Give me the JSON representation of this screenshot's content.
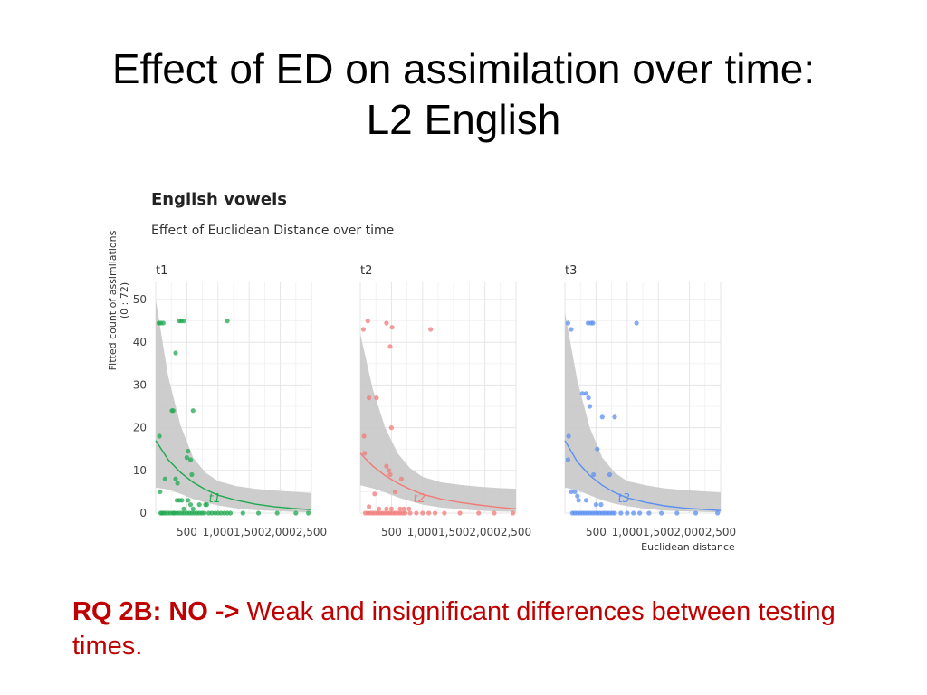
{
  "slide": {
    "title_line1": "Effect of ED on assimilation over time:",
    "title_line2": "L2 English"
  },
  "footer": {
    "prefix": "RQ 2B: NO ->",
    "text": " Weak and insignificant differences between testing times."
  },
  "colors": {
    "t1": "#1fa84f",
    "t2": "#f07b78",
    "t3": "#5b8ff0",
    "ribbon": "#c8c8c8",
    "grid": "#e6e6e6"
  },
  "chart_data": {
    "type": "scatter",
    "title": "English vowels",
    "subtitle": "Effect of Euclidean Distance over time",
    "ylabel": "Fitted count of assimilations",
    "ylabel_sub": "(0 : 72)",
    "xlabel": "Euclidean distance",
    "xlim": [
      0,
      2500
    ],
    "ylim": [
      0,
      50
    ],
    "x_ticks": [
      500,
      1000,
      1500,
      2000,
      2500
    ],
    "x_tick_labels": [
      "500",
      "1,000",
      "1,500",
      "2,000",
      "2,500"
    ],
    "y_ticks": [
      0,
      10,
      20,
      30,
      40,
      50
    ],
    "y_tick_labels": [
      "0",
      "10",
      "20",
      "30",
      "40",
      "50"
    ],
    "panels": [
      {
        "label": "t1",
        "curve_label": "t1",
        "curve": {
          "x": [
            0,
            200,
            400,
            600,
            800,
            1000,
            1300,
            1600,
            1900,
            2200,
            2500
          ],
          "y": [
            17,
            12.5,
            9.5,
            7.2,
            5.5,
            4.2,
            3,
            2.1,
            1.5,
            1.1,
            0.8
          ]
        },
        "ribbon_upper": [
          50,
          32,
          20.5,
          13,
          9.5,
          7.5,
          6.3,
          5.7,
          5.3,
          5,
          4.7
        ],
        "ribbon_lower": [
          6,
          5.5,
          4.5,
          3.3,
          2.5,
          1.8,
          1.1,
          0.7,
          0.5,
          0.3,
          0.2
        ],
        "points": {
          "x": [
            50,
            80,
            120,
            380,
            410,
            450,
            1150,
            320,
            260,
            280,
            600,
            520,
            500,
            560,
            580,
            60,
            70,
            150,
            320,
            350,
            340,
            380,
            420,
            520,
            560,
            700,
            800,
            820,
            450,
            600,
            80,
            100,
            130,
            160,
            200,
            240,
            280,
            300,
            340,
            380,
            420,
            460,
            500,
            540,
            580,
            620,
            660,
            700,
            740,
            780,
            850,
            900,
            950,
            1000,
            1050,
            1100,
            1150,
            1200,
            1400,
            1650,
            1950,
            2250,
            2450
          ],
          "y": [
            44.5,
            44.5,
            44.5,
            45,
            45,
            45,
            45,
            37.5,
            24,
            24,
            24,
            14.5,
            13,
            12.5,
            9,
            18,
            5,
            8,
            8,
            7,
            3,
            3,
            3,
            3,
            2,
            2,
            2,
            2,
            1,
            1,
            0,
            0,
            0,
            0,
            0,
            0,
            0,
            0,
            0,
            0,
            0,
            0,
            0,
            0,
            0,
            0,
            0,
            0,
            0,
            0,
            0,
            0,
            0,
            0,
            0,
            0,
            0,
            0,
            0,
            0,
            0,
            0,
            0
          ]
        }
      },
      {
        "label": "t2",
        "curve_label": "t2",
        "curve": {
          "x": [
            0,
            200,
            400,
            600,
            800,
            1000,
            1300,
            1600,
            1900,
            2200,
            2500
          ],
          "y": [
            14,
            11,
            8.8,
            7,
            5.6,
            4.4,
            3.3,
            2.5,
            1.9,
            1.4,
            1
          ]
        },
        "ribbon_upper": [
          42,
          29,
          20,
          14,
          10.5,
          8.5,
          7.2,
          6.6,
          6.2,
          5.9,
          5.7
        ],
        "ribbon_lower": [
          6.5,
          5.8,
          4.8,
          3.7,
          2.8,
          2,
          1.3,
          0.9,
          0.6,
          0.4,
          0.3
        ],
        "points": {
          "x": [
            50,
            120,
            420,
            510,
            1130,
            480,
            140,
            260,
            500,
            660,
            60,
            70,
            420,
            460,
            480,
            230,
            560,
            140,
            300,
            420,
            500,
            640,
            700,
            780,
            80,
            120,
            160,
            200,
            240,
            280,
            320,
            360,
            400,
            440,
            480,
            520,
            560,
            600,
            640,
            680,
            720,
            800,
            900,
            1000,
            1100,
            1200,
            1350,
            1600,
            1900,
            2150,
            2450
          ],
          "y": [
            43,
            45,
            44.5,
            43.5,
            43,
            39,
            27,
            27,
            20,
            8,
            18,
            14,
            11,
            10,
            9,
            4.5,
            5,
            1.5,
            1,
            1,
            1,
            1,
            1,
            1,
            0,
            0,
            0,
            0,
            0,
            0,
            0,
            0,
            0,
            0,
            0,
            0,
            0,
            0,
            0,
            0,
            0,
            0,
            0,
            0,
            0,
            0,
            0,
            0,
            0,
            0,
            0
          ]
        }
      },
      {
        "label": "t3",
        "curve_label": "t3",
        "curve": {
          "x": [
            0,
            200,
            400,
            600,
            800,
            1000,
            1300,
            1600,
            1900,
            2200,
            2500
          ],
          "y": [
            17,
            12,
            8.8,
            6.5,
            4.8,
            3.6,
            2.5,
            1.7,
            1.2,
            0.9,
            0.6
          ]
        },
        "ribbon_upper": [
          47,
          31,
          20,
          13,
          9.5,
          7.5,
          6.5,
          5.8,
          5.4,
          5.1,
          4.8
        ],
        "ribbon_lower": [
          6,
          5.3,
          4.2,
          3,
          2.2,
          1.6,
          1,
          0.6,
          0.4,
          0.3,
          0.2
        ],
        "points": {
          "x": [
            50,
            100,
            370,
            420,
            450,
            1150,
            280,
            340,
            380,
            400,
            600,
            800,
            520,
            460,
            720,
            60,
            50,
            100,
            160,
            200,
            220,
            340,
            500,
            580,
            120,
            160,
            200,
            240,
            280,
            320,
            360,
            400,
            440,
            480,
            520,
            560,
            600,
            640,
            680,
            720,
            760,
            800,
            900,
            1000,
            1100,
            1200,
            1350,
            1550,
            1800,
            2100,
            2450
          ],
          "y": [
            44.5,
            43,
            44.5,
            44.5,
            44.5,
            44.5,
            28,
            28,
            27,
            25,
            22.5,
            22.5,
            15,
            9,
            9,
            18,
            12.5,
            5,
            5,
            4,
            3,
            3,
            2,
            2,
            0,
            0,
            0,
            0,
            0,
            0,
            0,
            0,
            0,
            0,
            0,
            0,
            0,
            0,
            0,
            0,
            0,
            0,
            0,
            0,
            0,
            0,
            0,
            0,
            0,
            0,
            0
          ]
        }
      }
    ]
  }
}
